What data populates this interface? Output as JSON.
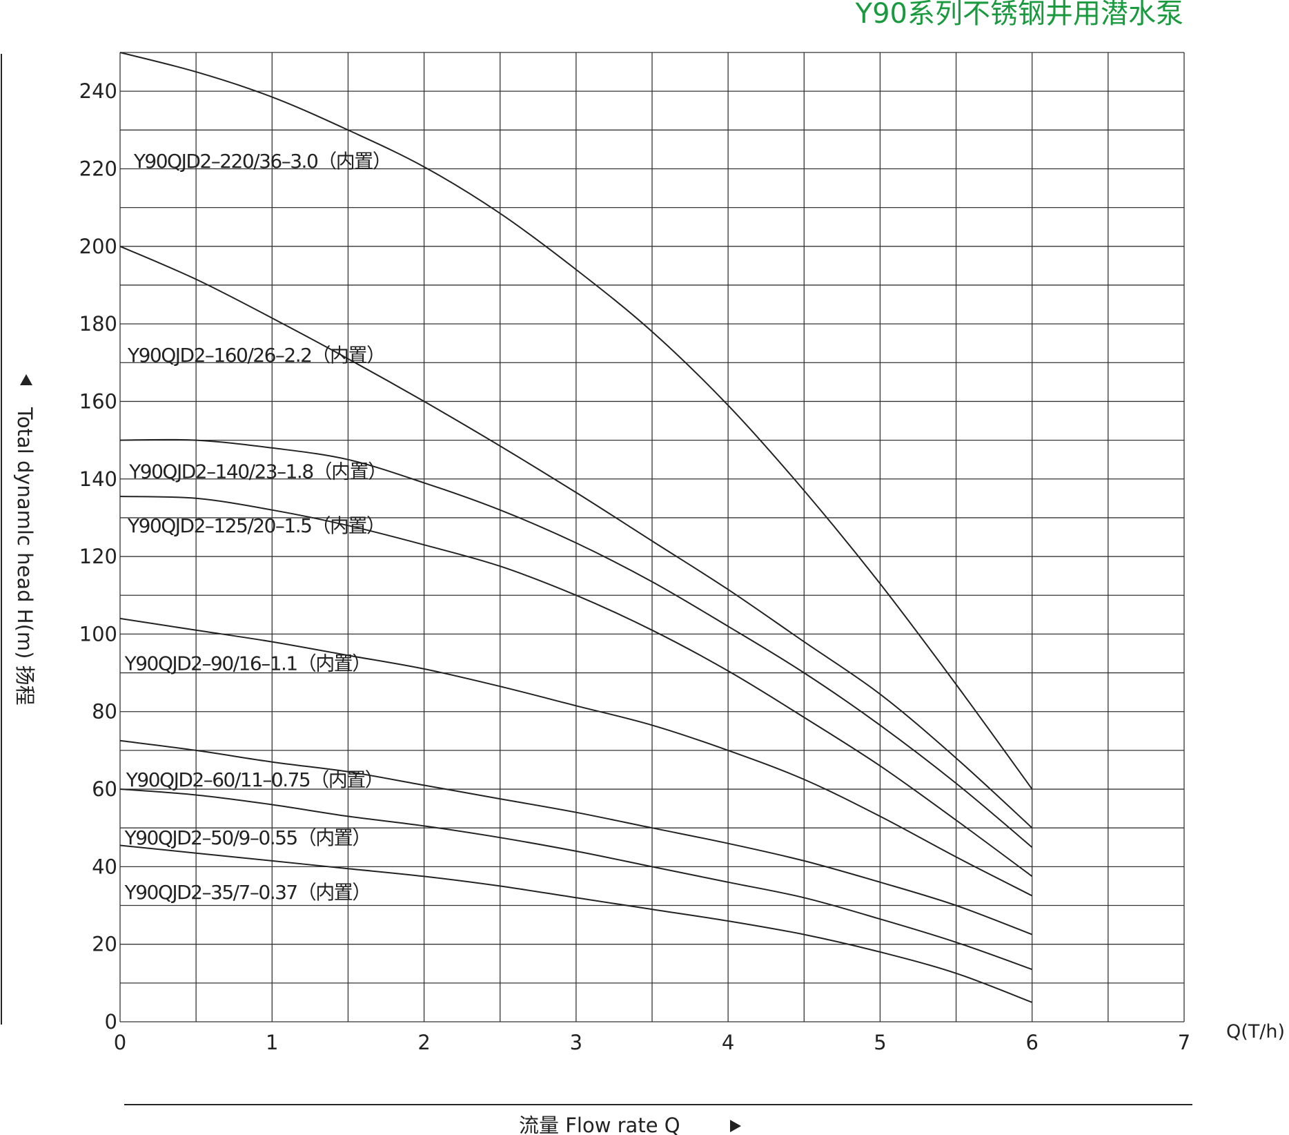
{
  "chart_data": {
    "type": "line",
    "title": "Y90系列不锈钢井用潜水泵",
    "title_color": "#1a9a3e",
    "xlabel": "流量 Flow rate Q",
    "x_unit_label": "Q(T/h)",
    "ylabel": "Total dynamlc head H(m) 扬程",
    "xlim": [
      0,
      7
    ],
    "ylim": [
      0,
      250
    ],
    "x_ticks": [
      0,
      1,
      2,
      3,
      4,
      5,
      6,
      7
    ],
    "y_ticks": [
      0,
      20,
      40,
      60,
      80,
      100,
      120,
      140,
      160,
      180,
      200,
      220,
      240
    ],
    "grid": true,
    "x_minor_step": 0.5,
    "y_minor_step": 10,
    "series": [
      {
        "name": "Y90QJD2–220/36–3.0（内置）",
        "x": [
          0,
          0.5,
          1,
          1.5,
          2,
          2.5,
          3,
          3.5,
          4,
          4.5,
          5,
          5.5,
          6
        ],
        "values": [
          250,
          245,
          238.5,
          230,
          220.5,
          208.5,
          194,
          178,
          159,
          137,
          113,
          87,
          60
        ]
      },
      {
        "name": "Y90QJD2–160/26–2.2（内置）",
        "x": [
          0,
          0.5,
          1,
          1.5,
          2,
          2.5,
          3,
          3.5,
          4,
          4.5,
          5,
          5.5,
          6
        ],
        "values": [
          200,
          191.5,
          181.5,
          171,
          160,
          148.5,
          136.5,
          124,
          111.5,
          98,
          84.5,
          68,
          50
        ]
      },
      {
        "name": "Y90QJD2–140/23–1.8（内置）",
        "x": [
          0,
          0.5,
          1,
          1.5,
          2,
          2.5,
          3,
          3.5,
          4,
          4.5,
          5,
          5.5,
          6
        ],
        "values": [
          150,
          150,
          148,
          145,
          139,
          132,
          123.5,
          113.5,
          102,
          90,
          76.5,
          61.5,
          45
        ]
      },
      {
        "name": "Y90QJD2–125/20–1.5（内置）",
        "x": [
          0,
          0.5,
          1,
          1.5,
          2,
          2.5,
          3,
          3.5,
          4,
          4.5,
          5,
          5.5,
          6
        ],
        "values": [
          135.5,
          135,
          132,
          128,
          123,
          117.5,
          110,
          101,
          90.5,
          78.5,
          66,
          52,
          37.5
        ]
      },
      {
        "name": "Y90QJD2–90/16–1.1（内置）",
        "x": [
          0,
          0.5,
          1,
          1.5,
          2,
          2.5,
          3,
          3.5,
          4,
          4.5,
          5,
          5.5,
          6
        ],
        "values": [
          104,
          101,
          98,
          94.5,
          91,
          86.5,
          81.5,
          76.5,
          70,
          62.5,
          53,
          42.5,
          32.5
        ]
      },
      {
        "name": "Y90QJD2–60/11–0.75（内置）",
        "x": [
          0,
          0.5,
          1,
          1.5,
          2,
          2.5,
          3,
          3.5,
          4,
          4.5,
          5,
          5.5,
          6
        ],
        "values": [
          72.5,
          70,
          67,
          64.5,
          61,
          57.5,
          54,
          50,
          46,
          41.5,
          36,
          30,
          22.5
        ]
      },
      {
        "name": "Y90QJD2–50/9–0.55（内置）",
        "x": [
          0,
          0.5,
          1,
          1.5,
          2,
          2.5,
          3,
          3.5,
          4,
          4.5,
          5,
          5.5,
          6
        ],
        "values": [
          60,
          58.5,
          56,
          53,
          50.5,
          47.5,
          44,
          40,
          36,
          32,
          26.5,
          20.5,
          13.5
        ]
      },
      {
        "name": "Y90QJD2–35/7–0.37（内置）",
        "x": [
          0,
          0.5,
          1,
          1.5,
          2,
          2.5,
          3,
          3.5,
          4,
          4.5,
          5,
          5.5,
          6
        ],
        "values": [
          45.5,
          43.5,
          41.5,
          39.5,
          37.5,
          35,
          32,
          29,
          26,
          22.5,
          18,
          12.5,
          5
        ]
      }
    ],
    "series_label_anchor_y": [
      222,
      172,
      142,
      128,
      92.5,
      62.5,
      47.5,
      33.5
    ],
    "series_label_anchor_x": [
      0.09,
      0.05,
      0.06,
      0.05,
      0.03,
      0.04,
      0.03,
      0.03
    ]
  }
}
